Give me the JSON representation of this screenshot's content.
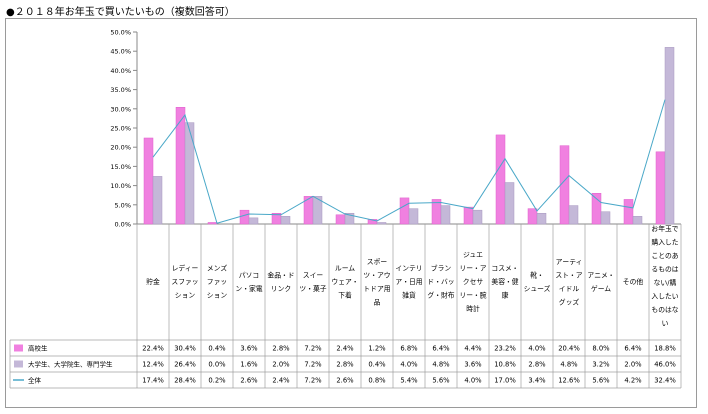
{
  "title": "●２０１８年お年玉で買いたいもの（複数回答可）",
  "chart_data": {
    "type": "bar",
    "title": "●２０１８年お年玉で買いたいもの（複数回答可）",
    "ylim": [
      0,
      50
    ],
    "y_ticks": [
      "0.0%",
      "5.0%",
      "10.0%",
      "15.0%",
      "20.0%",
      "25.0%",
      "30.0%",
      "35.0%",
      "40.0%",
      "45.0%",
      "50.0%"
    ],
    "grid": false,
    "legend_position": "table-left",
    "categories": [
      [
        "貯金"
      ],
      [
        "レディー",
        "スファッ",
        "ション"
      ],
      [
        "メンズ",
        "ファッ",
        "ション"
      ],
      [
        "パソコ",
        "ン・家電"
      ],
      [
        "金品・ド",
        "リンク"
      ],
      [
        "スイー",
        "ツ・菓子"
      ],
      [
        "ルーム",
        "ウェア・",
        "下着"
      ],
      [
        "スポー",
        "ツ・アウ",
        "トドア用",
        "品"
      ],
      [
        "インテリ",
        "ア・日用",
        "雑貨"
      ],
      [
        "ブラン",
        "ド・バッ",
        "グ・財布"
      ],
      [
        "ジュエ",
        "リー・ア",
        "クセサ",
        "リー・腕",
        "時計"
      ],
      [
        "コスメ・",
        "美容・健",
        "康"
      ],
      [
        "靴・",
        "シューズ"
      ],
      [
        "アーティ",
        "スト・ア",
        "イドル",
        "グッズ"
      ],
      [
        "アニメ・",
        "ゲーム"
      ],
      [
        "その他"
      ],
      [
        "お年玉で",
        "購入した",
        "ことのあ",
        "るものは",
        "ない/購",
        "入したい",
        "ものはな",
        "い"
      ]
    ],
    "series": [
      {
        "name": "高校生",
        "kind": "bar",
        "color": "#f080e0",
        "values": [
          22.4,
          30.4,
          0.4,
          3.6,
          2.8,
          7.2,
          2.4,
          1.2,
          6.8,
          6.4,
          4.4,
          23.2,
          4.0,
          20.4,
          8.0,
          6.4,
          18.8
        ],
        "labels": [
          "22.4%",
          "30.4%",
          "0.4%",
          "3.6%",
          "2.8%",
          "7.2%",
          "2.4%",
          "1.2%",
          "6.8%",
          "6.4%",
          "4.4%",
          "23.2%",
          "4.0%",
          "20.4%",
          "8.0%",
          "6.4%",
          "18.8%"
        ]
      },
      {
        "name": "大学生、大学院生、専門学生",
        "kind": "bar",
        "color": "#c4b8d8",
        "values": [
          12.4,
          26.4,
          0.0,
          1.6,
          2.0,
          7.2,
          2.8,
          0.4,
          4.0,
          4.8,
          3.6,
          10.8,
          2.8,
          4.8,
          3.2,
          2.0,
          46.0
        ],
        "labels": [
          "12.4%",
          "26.4%",
          "0.0%",
          "1.6%",
          "2.0%",
          "7.2%",
          "2.8%",
          "0.4%",
          "4.0%",
          "4.8%",
          "3.6%",
          "10.8%",
          "2.8%",
          "4.8%",
          "3.2%",
          "2.0%",
          "46.0%"
        ]
      },
      {
        "name": "全体",
        "kind": "line",
        "color": "#4aa8c8",
        "values": [
          17.4,
          28.4,
          0.2,
          2.6,
          2.4,
          7.2,
          2.6,
          0.8,
          5.4,
          5.6,
          4.0,
          17.0,
          3.4,
          12.6,
          5.6,
          4.2,
          32.4
        ],
        "labels": [
          "17.4%",
          "28.4%",
          "0.2%",
          "2.6%",
          "2.4%",
          "7.2%",
          "2.6%",
          "0.8%",
          "5.4%",
          "5.6%",
          "4.0%",
          "17.0%",
          "3.4%",
          "12.6%",
          "5.6%",
          "4.2%",
          "32.4%"
        ]
      }
    ]
  }
}
